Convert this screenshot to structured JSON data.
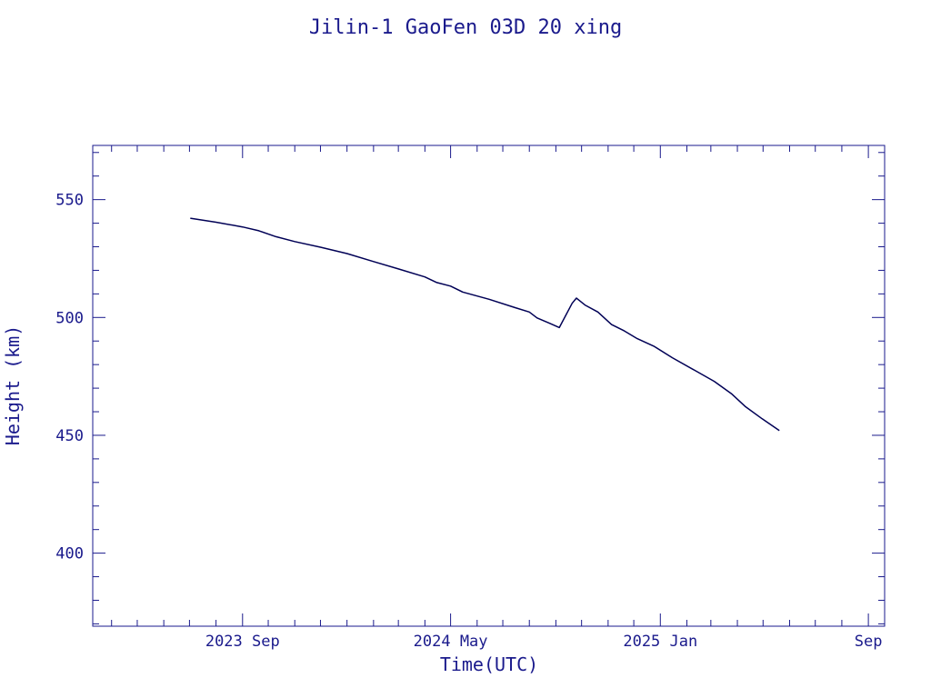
{
  "colors": {
    "ink": "#1a1a8c",
    "line": "#000055",
    "background": "#ffffff"
  },
  "chart_data": {
    "type": "line",
    "title": "Jilin-1 GaoFen 03D 20 xing",
    "xlabel": "Time(UTC)",
    "ylabel": "Height (km)",
    "xlim": [
      "2023-03-10",
      "2025-09-20"
    ],
    "ylim": [
      369,
      573
    ],
    "grid": false,
    "x_ticks": [
      {
        "date": "2023-09-01",
        "label": "2023 Sep"
      },
      {
        "date": "2024-05-01",
        "label": "2024 May"
      },
      {
        "date": "2025-01-01",
        "label": "2025 Jan"
      },
      {
        "date": "2025-09-01",
        "label": "Sep"
      }
    ],
    "y_ticks": [
      {
        "value": 400,
        "label": "400"
      },
      {
        "value": 450,
        "label": "450"
      },
      {
        "value": 500,
        "label": "500"
      },
      {
        "value": 550,
        "label": "550"
      }
    ],
    "series": [
      {
        "points": [
          [
            "2023-07-02",
            542.1
          ],
          [
            "2023-08-01",
            540.4
          ],
          [
            "2023-09-01",
            538.4
          ],
          [
            "2023-09-20",
            536.8
          ],
          [
            "2023-10-10",
            534.3
          ],
          [
            "2023-11-01",
            532.2
          ],
          [
            "2023-12-01",
            529.8
          ],
          [
            "2024-01-01",
            527.1
          ],
          [
            "2024-02-01",
            523.7
          ],
          [
            "2024-03-01",
            520.6
          ],
          [
            "2024-04-01",
            517.2
          ],
          [
            "2024-04-15",
            514.8
          ],
          [
            "2024-05-01",
            513.3
          ],
          [
            "2024-05-15",
            510.8
          ],
          [
            "2024-06-15",
            507.7
          ],
          [
            "2024-07-15",
            504.2
          ],
          [
            "2024-08-01",
            502.3
          ],
          [
            "2024-08-10",
            499.8
          ],
          [
            "2024-08-25",
            497.5
          ],
          [
            "2024-09-05",
            495.7
          ],
          [
            "2024-09-20",
            506.0
          ],
          [
            "2024-09-25",
            508.2
          ],
          [
            "2024-10-05",
            505.3
          ],
          [
            "2024-10-20",
            502.3
          ],
          [
            "2024-11-05",
            497.0
          ],
          [
            "2024-11-20",
            494.3
          ],
          [
            "2024-12-05",
            491.0
          ],
          [
            "2024-12-25",
            487.7
          ],
          [
            "2025-01-15",
            482.9
          ],
          [
            "2025-02-10",
            477.6
          ],
          [
            "2025-03-05",
            472.9
          ],
          [
            "2025-03-25",
            467.7
          ],
          [
            "2025-04-10",
            462.3
          ],
          [
            "2025-04-30",
            457.0
          ],
          [
            "2025-05-20",
            452.0
          ]
        ]
      }
    ]
  }
}
